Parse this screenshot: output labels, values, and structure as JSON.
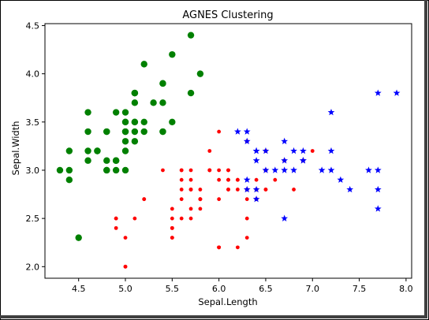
{
  "chart_data": {
    "type": "scatter",
    "title": "AGNES Clustering",
    "xlabel": "Sepal.Length",
    "ylabel": "Sepal.Width",
    "xlim": [
      4.14,
      8.06
    ],
    "ylim": [
      1.88,
      4.52
    ],
    "xticks": [
      "4.5",
      "5.0",
      "5.5",
      "6.0",
      "6.5",
      "7.0",
      "7.5",
      "8.0"
    ],
    "yticks": [
      "2.0",
      "2.5",
      "3.0",
      "3.5",
      "4.0",
      "4.5"
    ],
    "grid": false,
    "series": [
      {
        "color": "#008000",
        "marker": "circle",
        "points": [
          [
            5.1,
            3.5
          ],
          [
            4.9,
            3.0
          ],
          [
            4.7,
            3.2
          ],
          [
            4.6,
            3.1
          ],
          [
            5.0,
            3.6
          ],
          [
            5.4,
            3.9
          ],
          [
            4.6,
            3.4
          ],
          [
            5.0,
            3.4
          ],
          [
            4.4,
            2.9
          ],
          [
            4.9,
            3.1
          ],
          [
            5.4,
            3.7
          ],
          [
            4.8,
            3.4
          ],
          [
            4.8,
            3.0
          ],
          [
            4.3,
            3.0
          ],
          [
            5.8,
            4.0
          ],
          [
            5.7,
            4.4
          ],
          [
            5.4,
            3.9
          ],
          [
            5.1,
            3.5
          ],
          [
            5.7,
            3.8
          ],
          [
            5.1,
            3.8
          ],
          [
            5.4,
            3.4
          ],
          [
            5.1,
            3.7
          ],
          [
            4.6,
            3.6
          ],
          [
            5.1,
            3.3
          ],
          [
            4.8,
            3.4
          ],
          [
            5.0,
            3.0
          ],
          [
            5.0,
            3.4
          ],
          [
            5.2,
            3.5
          ],
          [
            5.2,
            3.4
          ],
          [
            4.7,
            3.2
          ],
          [
            4.8,
            3.1
          ],
          [
            5.4,
            3.4
          ],
          [
            5.2,
            4.1
          ],
          [
            5.5,
            4.2
          ],
          [
            4.9,
            3.1
          ],
          [
            5.0,
            3.2
          ],
          [
            5.5,
            3.5
          ],
          [
            4.9,
            3.6
          ],
          [
            4.4,
            3.0
          ],
          [
            5.1,
            3.4
          ],
          [
            5.0,
            3.5
          ],
          [
            4.5,
            2.3
          ],
          [
            4.4,
            3.2
          ],
          [
            5.0,
            3.5
          ],
          [
            5.1,
            3.8
          ],
          [
            4.8,
            3.0
          ],
          [
            5.1,
            3.8
          ],
          [
            4.6,
            3.2
          ],
          [
            5.3,
            3.7
          ],
          [
            5.0,
            3.3
          ]
        ]
      },
      {
        "color": "#ff0000",
        "marker": "circle-small",
        "points": [
          [
            5.5,
            2.3
          ],
          [
            6.5,
            2.8
          ],
          [
            5.7,
            2.8
          ],
          [
            6.3,
            3.3
          ],
          [
            4.9,
            2.4
          ],
          [
            6.6,
            2.9
          ],
          [
            5.2,
            2.7
          ],
          [
            5.0,
            2.0
          ],
          [
            5.9,
            3.0
          ],
          [
            6.0,
            2.2
          ],
          [
            6.1,
            2.9
          ],
          [
            5.6,
            2.9
          ],
          [
            5.6,
            3.0
          ],
          [
            5.8,
            2.7
          ],
          [
            6.2,
            2.2
          ],
          [
            5.6,
            2.5
          ],
          [
            5.9,
            3.2
          ],
          [
            6.1,
            2.8
          ],
          [
            6.3,
            2.5
          ],
          [
            6.1,
            2.8
          ],
          [
            6.4,
            2.9
          ],
          [
            6.0,
            2.9
          ],
          [
            5.7,
            2.6
          ],
          [
            5.5,
            2.4
          ],
          [
            5.5,
            2.4
          ],
          [
            5.8,
            2.7
          ],
          [
            6.0,
            2.7
          ],
          [
            5.4,
            3.0
          ],
          [
            6.0,
            3.4
          ],
          [
            6.3,
            2.3
          ],
          [
            5.6,
            3.0
          ],
          [
            5.5,
            2.5
          ],
          [
            5.5,
            2.6
          ],
          [
            6.1,
            3.0
          ],
          [
            5.8,
            2.6
          ],
          [
            5.0,
            2.3
          ],
          [
            5.6,
            2.7
          ],
          [
            5.7,
            3.0
          ],
          [
            5.7,
            2.9
          ],
          [
            6.2,
            2.9
          ],
          [
            5.1,
            2.5
          ],
          [
            5.7,
            2.8
          ],
          [
            4.9,
            2.5
          ],
          [
            5.7,
            2.5
          ],
          [
            5.8,
            2.8
          ],
          [
            6.4,
            2.7
          ],
          [
            6.0,
            3.0
          ],
          [
            5.6,
            2.8
          ],
          [
            6.3,
            2.7
          ],
          [
            6.2,
            2.8
          ],
          [
            6.1,
            3.0
          ],
          [
            6.3,
            2.8
          ],
          [
            6.0,
            2.2
          ],
          [
            6.4,
            2.8
          ],
          [
            6.5,
            3.0
          ],
          [
            6.8,
            2.8
          ],
          [
            5.8,
            2.7
          ],
          [
            6.9,
            3.1
          ],
          [
            5.9,
            3.0
          ],
          [
            5.8,
            2.7
          ],
          [
            7.0,
            3.2
          ],
          [
            6.5,
            3.2
          ],
          [
            6.9,
            3.1
          ],
          [
            5.5,
            2.3
          ],
          [
            6.5,
            2.8
          ],
          [
            5.7,
            2.8
          ],
          [
            4.9,
            2.5
          ],
          [
            5.2,
            2.7
          ],
          [
            5.0,
            2.0
          ],
          [
            5.9,
            3.0
          ],
          [
            6.0,
            2.2
          ],
          [
            6.1,
            2.9
          ],
          [
            6.7,
            3.1
          ],
          [
            6.2,
            2.9
          ]
        ]
      },
      {
        "color": "#0000ff",
        "marker": "star",
        "points": [
          [
            7.9,
            3.8
          ],
          [
            7.7,
            3.8
          ],
          [
            7.2,
            3.6
          ],
          [
            6.7,
            3.3
          ],
          [
            6.3,
            3.4
          ],
          [
            6.2,
            3.4
          ],
          [
            6.3,
            3.3
          ],
          [
            6.4,
            3.2
          ],
          [
            6.5,
            3.2
          ],
          [
            6.7,
            3.1
          ],
          [
            6.8,
            3.2
          ],
          [
            6.9,
            3.2
          ],
          [
            7.2,
            3.2
          ],
          [
            6.4,
            3.1
          ],
          [
            6.9,
            3.1
          ],
          [
            6.7,
            3.0
          ],
          [
            6.5,
            3.0
          ],
          [
            6.8,
            3.0
          ],
          [
            7.1,
            3.0
          ],
          [
            7.2,
            3.0
          ],
          [
            7.6,
            3.0
          ],
          [
            7.7,
            3.0
          ],
          [
            7.3,
            2.9
          ],
          [
            6.3,
            2.9
          ],
          [
            6.4,
            2.8
          ],
          [
            7.4,
            2.8
          ],
          [
            7.7,
            2.8
          ],
          [
            6.4,
            2.7
          ],
          [
            6.7,
            2.5
          ],
          [
            7.7,
            2.6
          ],
          [
            6.3,
            2.8
          ],
          [
            6.6,
            3.0
          ],
          [
            6.9,
            3.1
          ],
          [
            6.4,
            3.2
          ]
        ]
      }
    ]
  }
}
